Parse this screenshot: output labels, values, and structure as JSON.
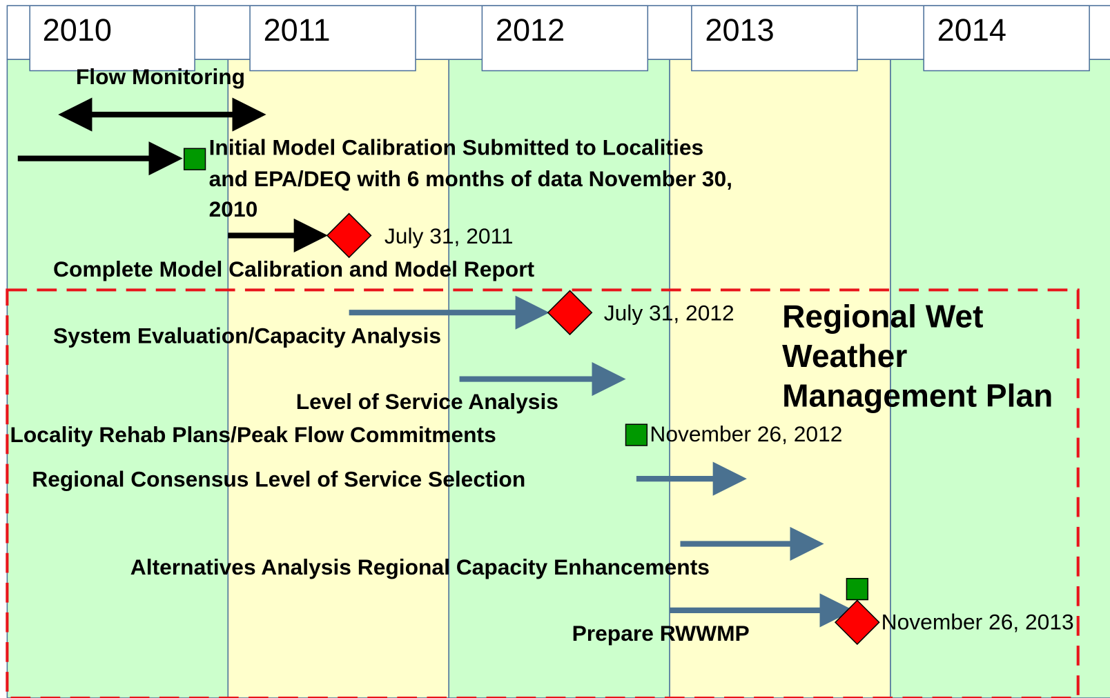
{
  "years": [
    "2010",
    "2011",
    "2012",
    "2013",
    "2014"
  ],
  "activities": [
    {
      "label": "Flow Monitoring"
    },
    {
      "label": [
        "Initial Model Calibration Submitted to Localities",
        "and EPA/DEQ with 6 months of data November 30,",
        "2010"
      ]
    },
    {
      "label": "Complete Model Calibration and Model Report",
      "date": "July 31, 2011"
    },
    {
      "label": "System Evaluation/Capacity Analysis",
      "date": "July 31, 2012"
    },
    {
      "label": "Level of Service Analysis"
    },
    {
      "label": "Locality Rehab Plans/Peak Flow Commitments",
      "date": "November 26, 2012"
    },
    {
      "label": "Regional Consensus Level of Service Selection"
    },
    {
      "label": "Alternatives Analysis Regional Capacity Enhancements"
    },
    {
      "label": "Prepare RWWMP",
      "date": "November 26, 2013"
    }
  ],
  "region": {
    "label": [
      "Regional Wet",
      "Weather",
      "Management Plan"
    ]
  }
}
